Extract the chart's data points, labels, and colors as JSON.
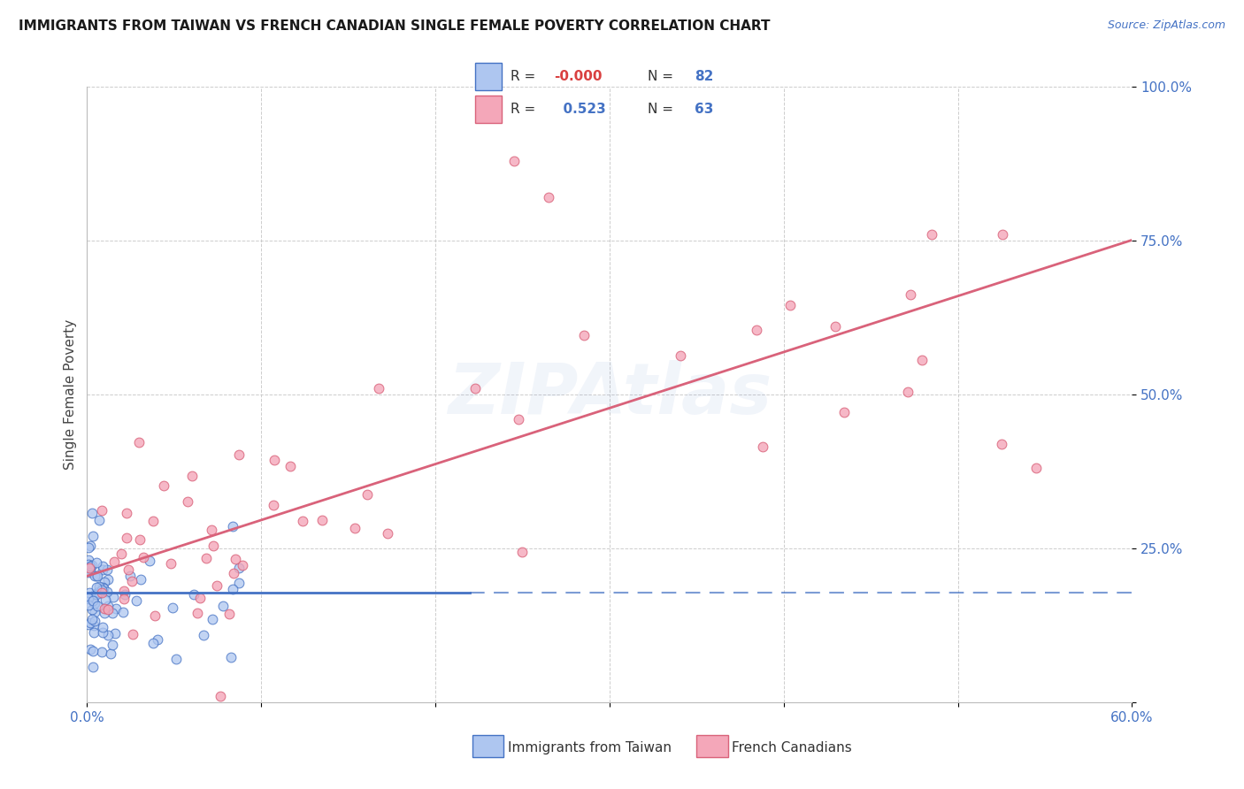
{
  "title": "IMMIGRANTS FROM TAIWAN VS FRENCH CANADIAN SINGLE FEMALE POVERTY CORRELATION CHART",
  "source": "Source: ZipAtlas.com",
  "ylabel": "Single Female Poverty",
  "xlim": [
    0.0,
    0.6
  ],
  "ylim": [
    0.0,
    1.0
  ],
  "yticks": [
    0.0,
    0.25,
    0.5,
    0.75,
    1.0
  ],
  "yticklabels": [
    "",
    "25.0%",
    "50.0%",
    "75.0%",
    "100.0%"
  ],
  "taiwan_R": "-0.000",
  "taiwan_N": 82,
  "french_R": "0.523",
  "french_N": 63,
  "taiwan_color": "#aec6f0",
  "french_color": "#f4a7b9",
  "taiwan_line_color": "#4472C4",
  "french_line_color": "#d9627a",
  "background_color": "#ffffff",
  "taiwan_intercept": 0.178,
  "taiwan_slope": 0.0,
  "french_intercept": 0.205,
  "french_slope": 0.91
}
